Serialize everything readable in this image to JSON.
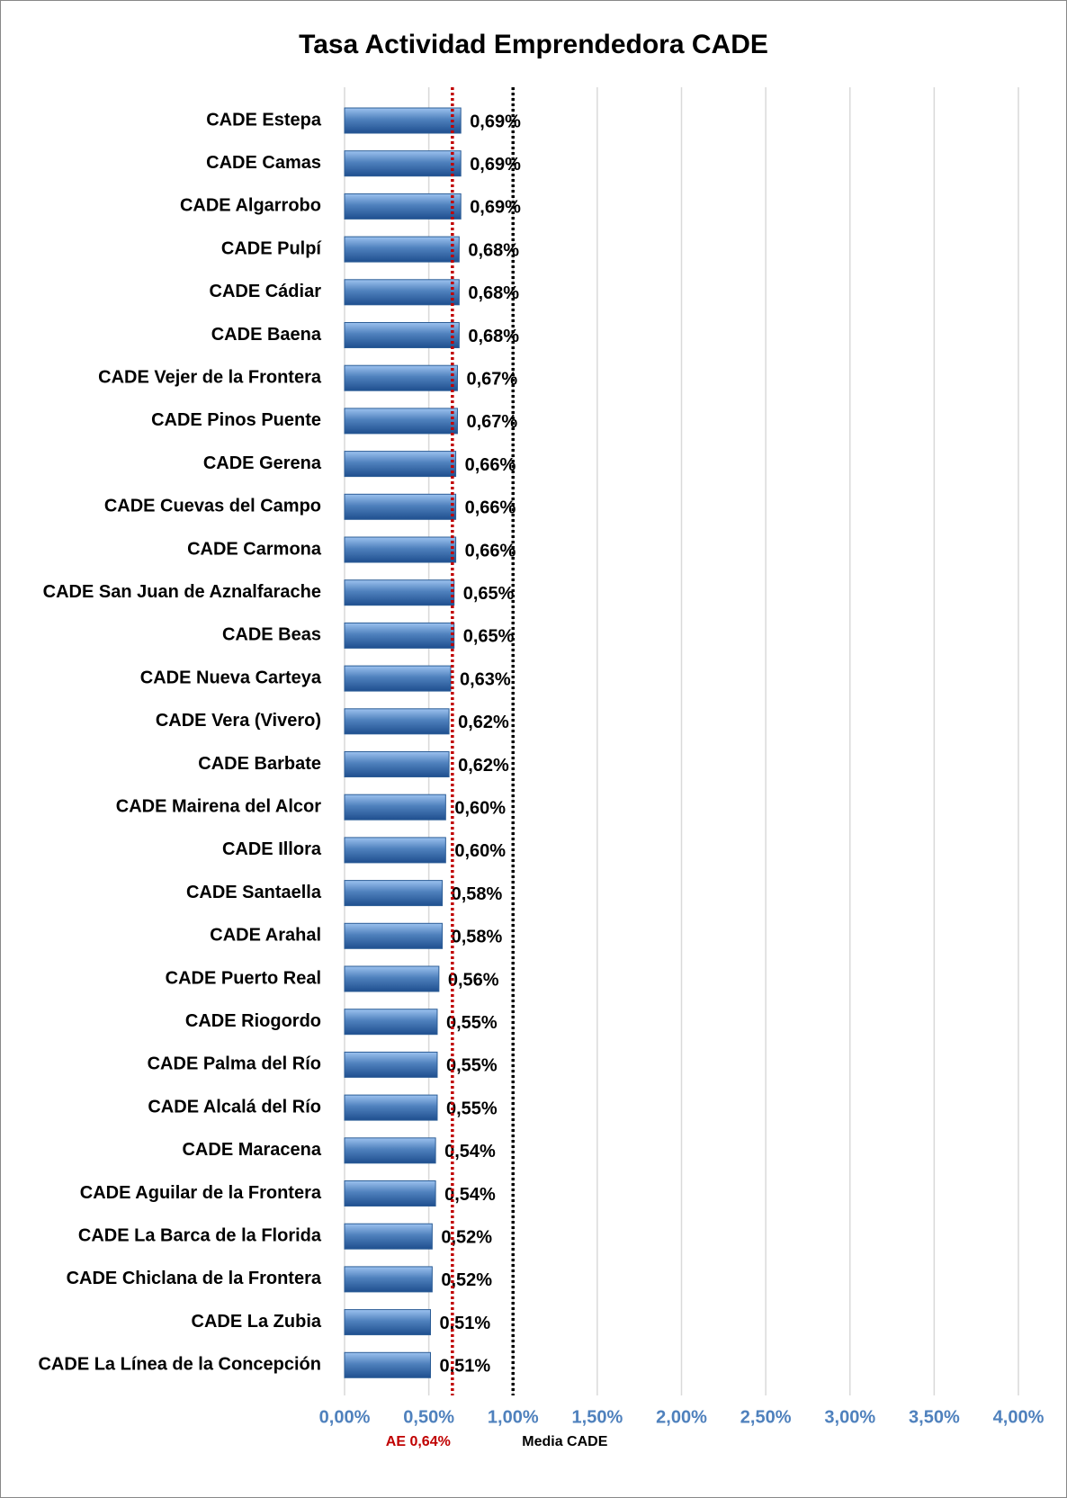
{
  "chart_data": {
    "type": "bar",
    "orientation": "horizontal",
    "title": "Tasa Actividad Emprendedora CADE",
    "categories": [
      "CADE Estepa",
      "CADE Camas",
      "CADE Algarrobo",
      "CADE Pulpí",
      "CADE Cádiar",
      "CADE Baena",
      "CADE Vejer de la Frontera",
      "CADE Pinos Puente",
      "CADE Gerena",
      "CADE Cuevas del Campo",
      "CADE Carmona",
      "CADE San Juan de Aznalfarache",
      "CADE Beas",
      "CADE Nueva Carteya",
      "CADE Vera (Vivero)",
      "CADE Barbate",
      "CADE Mairena del Alcor",
      "CADE Illora",
      "CADE Santaella",
      "CADE Arahal",
      "CADE Puerto Real",
      "CADE Riogordo",
      "CADE Palma del Río",
      "CADE Alcalá del Río",
      "CADE Maracena",
      "CADE Aguilar de la Frontera",
      "CADE La Barca de la Florida",
      "CADE Chiclana de la Frontera",
      "CADE La Zubia",
      "CADE La Línea de la Concepción"
    ],
    "values": [
      0.69,
      0.69,
      0.69,
      0.68,
      0.68,
      0.68,
      0.67,
      0.67,
      0.66,
      0.66,
      0.66,
      0.65,
      0.65,
      0.63,
      0.62,
      0.62,
      0.6,
      0.6,
      0.58,
      0.58,
      0.56,
      0.55,
      0.55,
      0.55,
      0.54,
      0.54,
      0.52,
      0.52,
      0.51,
      0.51
    ],
    "value_labels": [
      "0,69%",
      "0,69%",
      "0,69%",
      "0,68%",
      "0,68%",
      "0,68%",
      "0,67%",
      "0,67%",
      "0,66%",
      "0,66%",
      "0,66%",
      "0,65%",
      "0,65%",
      "0,63%",
      "0,62%",
      "0,62%",
      "0,60%",
      "0,60%",
      "0,58%",
      "0,58%",
      "0,56%",
      "0,55%",
      "0,55%",
      "0,55%",
      "0,54%",
      "0,54%",
      "0,52%",
      "0,52%",
      "0,51%",
      "0,51%"
    ],
    "color": "#4f81bd",
    "xlim": [
      0,
      4
    ],
    "xticks": [
      {
        "value": 0,
        "label": "0,00%"
      },
      {
        "value": 0.5,
        "label": "0,50%"
      },
      {
        "value": 1,
        "label": "1,00%"
      },
      {
        "value": 1.5,
        "label": "1,50%"
      },
      {
        "value": 2,
        "label": "2,00%"
      },
      {
        "value": 2.5,
        "label": "2,50%"
      },
      {
        "value": 3,
        "label": "3,00%"
      },
      {
        "value": 3.5,
        "label": "3,50%"
      },
      {
        "value": 4,
        "label": "4,00%"
      }
    ],
    "grid": true,
    "reference_lines": [
      {
        "label": "AE 0,64%",
        "value": 0.64,
        "color": "#c00000"
      },
      {
        "label": "Media CADE",
        "value": 1.0,
        "color": "#000000"
      }
    ]
  }
}
